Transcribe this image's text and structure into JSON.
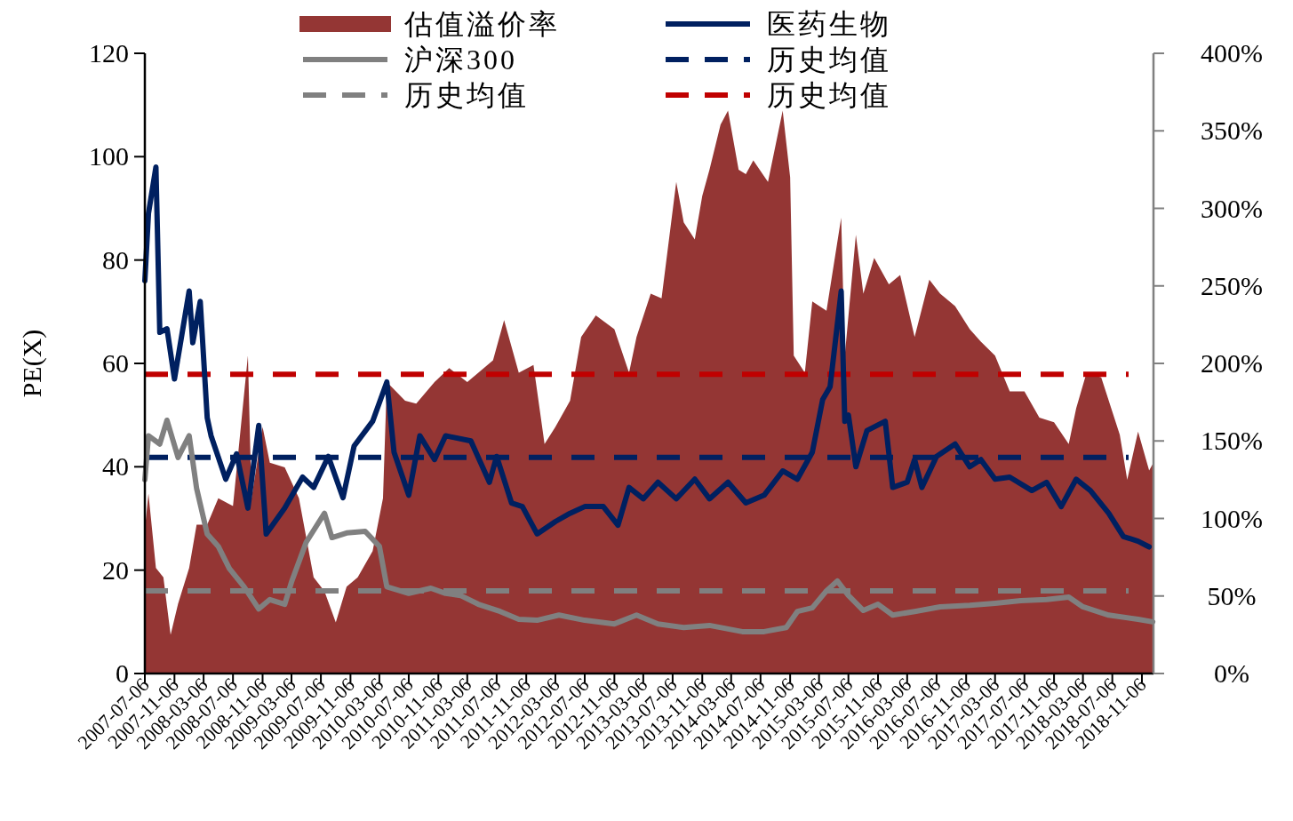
{
  "chart_data": {
    "type": "line",
    "ylabel": "PE(X)",
    "legend": "top",
    "grid": false,
    "marker": "none",
    "xlim": [
      "2007-07-06",
      "2018-12-24"
    ],
    "xticks": [
      "2007-07-06",
      "2007-11-06",
      "2008-03-06",
      "2008-07-06",
      "2008-11-06",
      "2009-03-06",
      "2009-07-06",
      "2009-11-06",
      "2010-03-06",
      "2010-07-06",
      "2010-11-06",
      "2011-03-06",
      "2011-07-06",
      "2011-11-06",
      "2012-03-06",
      "2012-07-06",
      "2012-11-06",
      "2013-03-06",
      "2013-07-06",
      "2013-11-06",
      "2014-03-06",
      "2014-07-06",
      "2014-11-06",
      "2015-03-06",
      "2015-07-06",
      "2015-11-06",
      "2016-03-06",
      "2016-07-06",
      "2016-11-06",
      "2017-03-06",
      "2017-07-06",
      "2017-11-06",
      "2018-03-06",
      "2018-07-06",
      "2018-11-06"
    ],
    "ylim": [
      0,
      120
    ],
    "yticks": [
      0,
      20,
      40,
      60,
      80,
      100,
      120
    ],
    "y2lim": [
      0,
      400
    ],
    "y2ticks": [
      {
        "value": 0,
        "label": "0%"
      },
      {
        "value": 50,
        "label": "50%"
      },
      {
        "value": 100,
        "label": "100%"
      },
      {
        "value": 150,
        "label": "150%"
      },
      {
        "value": 200,
        "label": "200%"
      },
      {
        "value": 250,
        "label": "250%"
      },
      {
        "value": 300,
        "label": "300%"
      },
      {
        "value": 350,
        "label": "350%"
      },
      {
        "value": 400,
        "label": "400%"
      }
    ],
    "series": [
      {
        "name": "估值溢价率",
        "type": "area",
        "axis": "y2",
        "color": "#943634",
        "x": [
          "2007-07-06",
          "2007-07-21",
          "2007-08-21",
          "2007-09-21",
          "2007-10-21",
          "2007-11-21",
          "2008-01-06",
          "2008-02-06",
          "2008-03-21",
          "2008-05-06",
          "2008-07-06",
          "2008-09-06",
          "2008-09-21",
          "2008-11-06",
          "2008-12-06",
          "2009-02-06",
          "2009-04-06",
          "2009-06-06",
          "2009-07-21",
          "2009-09-06",
          "2009-10-21",
          "2009-12-06",
          "2010-02-06",
          "2010-03-21",
          "2010-04-06",
          "2010-06-21",
          "2010-08-06",
          "2010-10-21",
          "2010-12-21",
          "2011-03-06",
          "2011-04-21",
          "2011-06-21",
          "2011-08-06",
          "2011-10-06",
          "2011-12-06",
          "2012-01-21",
          "2012-03-06",
          "2012-05-06",
          "2012-06-21",
          "2012-08-21",
          "2012-11-06",
          "2013-01-06",
          "2013-02-06",
          "2013-04-06",
          "2013-05-21",
          "2013-07-21",
          "2013-08-21",
          "2013-10-06",
          "2013-11-06",
          "2013-12-06",
          "2014-01-21",
          "2014-02-21",
          "2014-04-06",
          "2014-05-06",
          "2014-06-06",
          "2014-08-06",
          "2014-10-06",
          "2014-11-06",
          "2014-11-21",
          "2015-01-06",
          "2015-02-06",
          "2015-04-06",
          "2015-06-06",
          "2015-06-21",
          "2015-08-06",
          "2015-09-06",
          "2015-10-21",
          "2015-12-21",
          "2016-02-06",
          "2016-04-06",
          "2016-06-06",
          "2016-07-21",
          "2016-09-21",
          "2016-11-21",
          "2017-01-06",
          "2017-03-06",
          "2017-05-06",
          "2017-07-06",
          "2017-09-06",
          "2017-11-06",
          "2018-01-06",
          "2018-02-06",
          "2018-03-21",
          "2018-05-21",
          "2018-08-06",
          "2018-09-06",
          "2018-10-21",
          "2018-12-06",
          "2018-12-24"
        ],
        "values": [
          93,
          116,
          68,
          62,
          25,
          45,
          68,
          96,
          96,
          113,
          108,
          205,
          113,
          159,
          136,
          133,
          113,
          62,
          53,
          33,
          56,
          62,
          79,
          113,
          188,
          176,
          174,
          188,
          197,
          188,
          194,
          202,
          228,
          194,
          199,
          148,
          159,
          176,
          217,
          231,
          222,
          194,
          217,
          245,
          242,
          317,
          291,
          280,
          308,
          325,
          354,
          363,
          325,
          322,
          331,
          317,
          363,
          320,
          205,
          194,
          240,
          234,
          294,
          205,
          283,
          245,
          268,
          251,
          257,
          217,
          254,
          245,
          237,
          222,
          214,
          205,
          182,
          182,
          165,
          162,
          148,
          171,
          194,
          191,
          154,
          125,
          156,
          131,
          136
        ]
      },
      {
        "name": "医药生物",
        "color": "#002060",
        "x": [
          "2007-07-06",
          "2007-07-21",
          "2007-08-21",
          "2007-09-06",
          "2007-10-06",
          "2007-11-06",
          "2008-01-06",
          "2008-01-21",
          "2008-02-21",
          "2008-03-21",
          "2008-04-06",
          "2008-06-06",
          "2008-07-21",
          "2008-09-06",
          "2008-10-21",
          "2008-11-21",
          "2009-02-06",
          "2009-04-21",
          "2009-06-06",
          "2009-08-06",
          "2009-10-06",
          "2009-11-21",
          "2010-02-06",
          "2010-04-06",
          "2010-05-06",
          "2010-07-06",
          "2010-08-21",
          "2010-10-21",
          "2010-12-06",
          "2011-03-21",
          "2011-06-06",
          "2011-07-06",
          "2011-09-06",
          "2011-10-21",
          "2011-12-21",
          "2012-03-06",
          "2012-05-06",
          "2012-07-06",
          "2012-09-21",
          "2012-11-21",
          "2013-01-06",
          "2013-03-06",
          "2013-05-06",
          "2013-07-21",
          "2013-10-06",
          "2013-12-06",
          "2014-02-21",
          "2014-05-06",
          "2014-07-21",
          "2014-10-06",
          "2014-12-06",
          "2015-02-06",
          "2015-03-21",
          "2015-04-21",
          "2015-06-06",
          "2015-06-21",
          "2015-07-06",
          "2015-08-06",
          "2015-09-21",
          "2015-12-06",
          "2016-01-06",
          "2016-03-06",
          "2016-04-06",
          "2016-05-06",
          "2016-07-06",
          "2016-09-21",
          "2016-11-21",
          "2017-01-06",
          "2017-03-06",
          "2017-05-06",
          "2017-08-06",
          "2017-10-06",
          "2017-12-06",
          "2018-02-06",
          "2018-04-06",
          "2018-06-21",
          "2018-08-21",
          "2018-10-21",
          "2018-12-06"
        ],
        "values": [
          76,
          89,
          98,
          66,
          66.7,
          57,
          74,
          64,
          72,
          49.5,
          46,
          37.6,
          42.5,
          32,
          48,
          27,
          32,
          38,
          36,
          42,
          34,
          44,
          48.8,
          56.4,
          42.8,
          34.5,
          46,
          41.4,
          46,
          45,
          37,
          42,
          33,
          32.3,
          27,
          29.4,
          31,
          32.3,
          32.3,
          28.7,
          36,
          33.8,
          37,
          33.8,
          37.6,
          33.8,
          37,
          33,
          34.5,
          39.2,
          37.6,
          42.8,
          53,
          55.5,
          74,
          48.8,
          50,
          40,
          47,
          48.8,
          36,
          37,
          41.4,
          36,
          42,
          44.4,
          40,
          41.4,
          37.6,
          38,
          35.4,
          37,
          32.3,
          37.6,
          35.4,
          31,
          26.5,
          25.6,
          24.5
        ]
      },
      {
        "name": "沪深300",
        "color": "#808080",
        "x": [
          "2007-07-06",
          "2007-07-21",
          "2007-09-06",
          "2007-10-06",
          "2007-11-21",
          "2008-01-06",
          "2008-02-06",
          "2008-03-21",
          "2008-05-06",
          "2008-06-21",
          "2008-08-21",
          "2008-10-21",
          "2008-12-06",
          "2009-02-06",
          "2009-03-06",
          "2009-05-06",
          "2009-07-21",
          "2009-08-21",
          "2009-10-21",
          "2010-01-06",
          "2010-03-06",
          "2010-04-06",
          "2010-07-06",
          "2010-10-06",
          "2010-12-06",
          "2011-02-06",
          "2011-04-21",
          "2011-07-21",
          "2011-10-06",
          "2011-12-21",
          "2012-03-21",
          "2012-07-06",
          "2012-11-06",
          "2013-02-06",
          "2013-05-06",
          "2013-08-21",
          "2013-12-06",
          "2014-04-21",
          "2014-07-21",
          "2014-10-21",
          "2014-12-06",
          "2015-02-06",
          "2015-04-06",
          "2015-05-21",
          "2015-07-06",
          "2015-09-06",
          "2015-11-06",
          "2016-01-06",
          "2016-04-06",
          "2016-07-21",
          "2016-11-21",
          "2017-03-06",
          "2017-06-21",
          "2017-10-06",
          "2018-01-06",
          "2018-03-06",
          "2018-06-21",
          "2018-10-21",
          "2018-12-21"
        ],
        "values": [
          37.5,
          46,
          44.4,
          49,
          41.8,
          46,
          35.8,
          27,
          24.6,
          20.3,
          16.8,
          12.5,
          14.3,
          13.4,
          17.7,
          25.4,
          31,
          26.3,
          27.2,
          27.5,
          24.6,
          16.8,
          15.5,
          16.5,
          15.5,
          15.1,
          13.4,
          12,
          10.5,
          10.3,
          11.3,
          10.3,
          9.6,
          11.3,
          9.6,
          8.9,
          9.3,
          8.1,
          8.1,
          8.9,
          12,
          12.7,
          16,
          17.9,
          15.1,
          12.2,
          13.4,
          11.3,
          12,
          12.9,
          13.2,
          13.6,
          14.1,
          14.3,
          14.8,
          12.9,
          11.3,
          10.5,
          10
        ]
      }
    ],
    "ref_lines": [
      {
        "axis": "y",
        "value": 41.8,
        "label": "历史均值",
        "color": "#002060",
        "line_style": "dashed"
      },
      {
        "axis": "y",
        "value": 16,
        "label": "历史均值",
        "color": "#808080",
        "line_style": "dashed"
      },
      {
        "axis": "y2",
        "value": 193,
        "label": "历史均值",
        "color": "#c00000",
        "line_style": "dashed"
      }
    ]
  }
}
